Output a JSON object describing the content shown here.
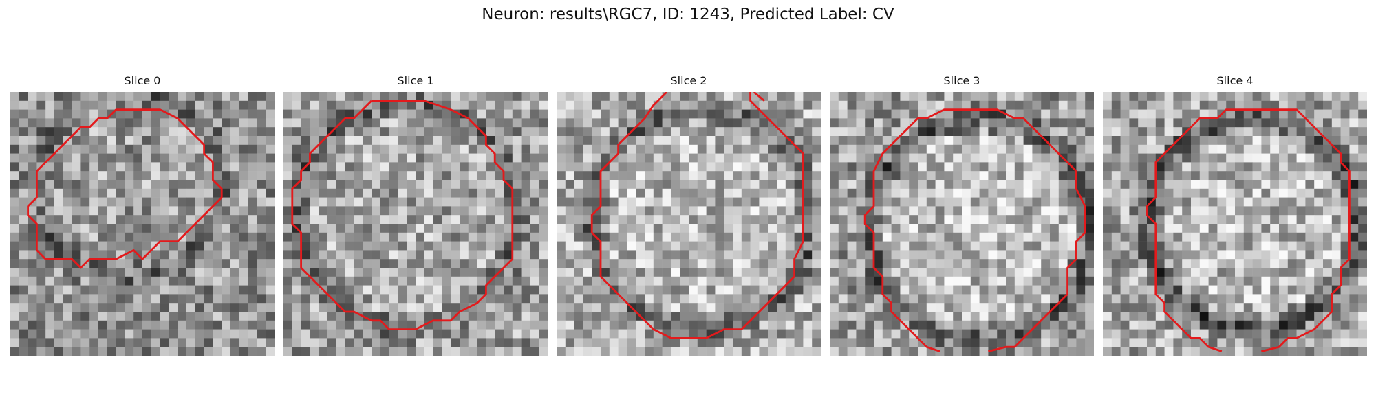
{
  "figure": {
    "title": "Neuron: results\\RGC7, ID: 1243, Predicted Label: CV"
  },
  "panels": [
    {
      "title": "Slice 0"
    },
    {
      "title": "Slice 1"
    },
    {
      "title": "Slice 2"
    },
    {
      "title": "Slice 3"
    },
    {
      "title": "Slice 4"
    }
  ],
  "colors": {
    "contour": "#e31a1c",
    "background": "#ffffff"
  }
}
